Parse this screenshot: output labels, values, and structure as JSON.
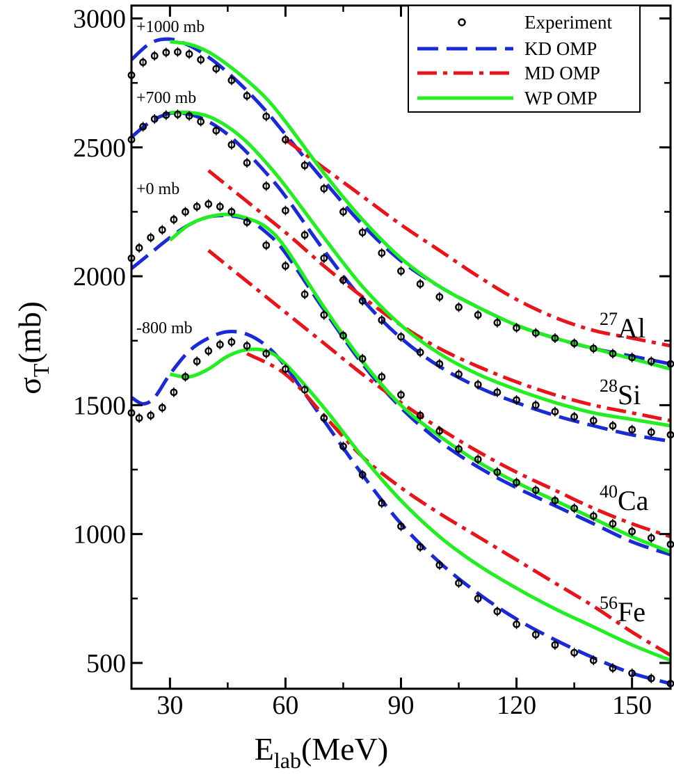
{
  "chart_data": {
    "type": "line",
    "xlabel": "E",
    "xlabel_sub": "lab",
    "xlabel_unit": "(MeV)",
    "ylabel": "σ",
    "ylabel_sub": "T",
    "ylabel_unit": "(mb)",
    "xlim": [
      20,
      160
    ],
    "ylim": [
      400,
      3050
    ],
    "x_ticks": [
      30,
      60,
      90,
      120,
      150
    ],
    "y_ticks": [
      500,
      1000,
      1500,
      2000,
      2500,
      3000
    ],
    "grid": false,
    "legend_position": "top-right",
    "legend": [
      {
        "label": "Experiment",
        "style": "markers",
        "color": "#000000"
      },
      {
        "label": "KD OMP",
        "style": "dashed",
        "color": "#1a2bd6"
      },
      {
        "label": "MD OMP",
        "style": "dash-dot",
        "color": "#e8141b"
      },
      {
        "label": "WP OMP",
        "style": "solid",
        "color": "#22ee22"
      }
    ],
    "offset_annotations": [
      "+1000 mb",
      "+700 mb",
      "+0 mb",
      "-800 mb"
    ],
    "nuclei": [
      {
        "mass": "27",
        "symbol": "Al"
      },
      {
        "mass": "28",
        "symbol": "Si"
      },
      {
        "mass": "40",
        "symbol": "Ca"
      },
      {
        "mass": "56",
        "symbol": "Fe"
      }
    ],
    "series": [
      {
        "name": "27Al (+1000 mb)",
        "experiment": {
          "x": [
            20,
            23,
            26,
            29,
            32,
            35,
            38,
            42,
            46,
            50,
            55,
            60,
            65,
            70,
            75,
            80,
            85,
            90,
            95,
            100,
            105,
            110,
            115,
            120,
            125,
            130,
            135,
            140,
            145,
            150,
            155,
            160
          ],
          "y": [
            2780,
            2830,
            2855,
            2868,
            2870,
            2862,
            2840,
            2805,
            2760,
            2700,
            2620,
            2530,
            2430,
            2340,
            2250,
            2170,
            2090,
            2020,
            1970,
            1920,
            1880,
            1850,
            1820,
            1800,
            1780,
            1760,
            1740,
            1720,
            1700,
            1685,
            1670,
            1660
          ]
        },
        "KD OMP": {
          "x": [
            20,
            25,
            30,
            35,
            40,
            45,
            50,
            55,
            60,
            70,
            80,
            90,
            100,
            110,
            120,
            130,
            140,
            150,
            160
          ],
          "y": [
            2840,
            2905,
            2920,
            2895,
            2850,
            2790,
            2720,
            2640,
            2550,
            2370,
            2200,
            2060,
            1960,
            1880,
            1810,
            1760,
            1720,
            1690,
            1660
          ]
        },
        "MD OMP": {
          "x": [
            60,
            70,
            80,
            90,
            100,
            110,
            120,
            130,
            140,
            150,
            160
          ],
          "y": [
            2530,
            2420,
            2310,
            2200,
            2100,
            2000,
            1910,
            1840,
            1790,
            1760,
            1730
          ]
        },
        "WP OMP": {
          "x": [
            30,
            35,
            40,
            45,
            50,
            55,
            60,
            70,
            80,
            90,
            100,
            110,
            120,
            130,
            140,
            150,
            160
          ],
          "y": [
            2910,
            2900,
            2870,
            2820,
            2760,
            2690,
            2600,
            2400,
            2220,
            2070,
            1960,
            1880,
            1810,
            1760,
            1720,
            1680,
            1640
          ]
        }
      },
      {
        "name": "28Si (+700 mb)",
        "experiment": {
          "x": [
            20,
            23,
            26,
            29,
            32,
            35,
            38,
            42,
            46,
            50,
            55,
            60,
            65,
            70,
            75,
            80,
            85,
            90,
            95,
            100,
            105,
            110,
            115,
            120,
            125,
            130,
            135,
            140,
            145,
            150,
            155,
            160
          ],
          "y": [
            2530,
            2580,
            2610,
            2625,
            2628,
            2622,
            2600,
            2565,
            2510,
            2440,
            2350,
            2255,
            2160,
            2070,
            1985,
            1905,
            1830,
            1765,
            1705,
            1660,
            1620,
            1580,
            1550,
            1520,
            1500,
            1475,
            1455,
            1440,
            1420,
            1405,
            1395,
            1385
          ]
        },
        "KD OMP": {
          "x": [
            20,
            25,
            30,
            35,
            40,
            45,
            50,
            55,
            60,
            70,
            80,
            90,
            100,
            110,
            120,
            130,
            140,
            150,
            160
          ],
          "y": [
            2540,
            2600,
            2632,
            2628,
            2600,
            2550,
            2480,
            2400,
            2310,
            2100,
            1910,
            1760,
            1650,
            1570,
            1510,
            1460,
            1420,
            1385,
            1360
          ]
        },
        "MD OMP": {
          "x": [
            40,
            50,
            60,
            70,
            80,
            90,
            100,
            110,
            120,
            130,
            140,
            150,
            160
          ],
          "y": [
            2410,
            2290,
            2170,
            2040,
            1920,
            1810,
            1720,
            1650,
            1590,
            1540,
            1500,
            1470,
            1440
          ]
        },
        "WP OMP": {
          "x": [
            30,
            35,
            40,
            45,
            50,
            55,
            60,
            70,
            80,
            90,
            100,
            110,
            120,
            130,
            140,
            150,
            160
          ],
          "y": [
            2635,
            2635,
            2620,
            2580,
            2520,
            2440,
            2350,
            2150,
            1960,
            1810,
            1700,
            1620,
            1560,
            1510,
            1470,
            1445,
            1420
          ]
        }
      },
      {
        "name": "40Ca (+0 mb)",
        "experiment": {
          "x": [
            20,
            22,
            25,
            28,
            31,
            34,
            37,
            40,
            43,
            46,
            50,
            55,
            60,
            65,
            70,
            75,
            80,
            85,
            90,
            95,
            100,
            105,
            110,
            115,
            120,
            125,
            130,
            135,
            140,
            145,
            150,
            155,
            160
          ],
          "y": [
            2070,
            2110,
            2150,
            2180,
            2220,
            2250,
            2270,
            2280,
            2270,
            2250,
            2210,
            2120,
            2040,
            1930,
            1850,
            1770,
            1680,
            1610,
            1540,
            1460,
            1400,
            1330,
            1290,
            1240,
            1200,
            1170,
            1130,
            1100,
            1070,
            1040,
            1010,
            985,
            960
          ]
        },
        "KD OMP": {
          "x": [
            20,
            25,
            30,
            35,
            40,
            45,
            50,
            55,
            60,
            70,
            80,
            90,
            100,
            110,
            120,
            130,
            140,
            150,
            160
          ],
          "y": [
            2030,
            2090,
            2150,
            2200,
            2230,
            2235,
            2220,
            2170,
            2090,
            1870,
            1660,
            1490,
            1360,
            1260,
            1180,
            1110,
            1040,
            970,
            920
          ]
        },
        "MD OMP": {
          "x": [
            40,
            50,
            60,
            70,
            80,
            90,
            100,
            110,
            120,
            130,
            140,
            150,
            160
          ],
          "y": [
            2100,
            1980,
            1860,
            1740,
            1620,
            1510,
            1410,
            1320,
            1240,
            1170,
            1100,
            1040,
            990
          ]
        },
        "WP OMP": {
          "x": [
            30,
            35,
            40,
            45,
            50,
            55,
            60,
            70,
            80,
            90,
            100,
            110,
            120,
            130,
            140,
            150,
            160
          ],
          "y": [
            2140,
            2200,
            2230,
            2240,
            2225,
            2190,
            2110,
            1880,
            1670,
            1500,
            1380,
            1280,
            1200,
            1130,
            1060,
            990,
            930
          ]
        }
      },
      {
        "name": "56Fe (-800 mb)",
        "experiment": {
          "x": [
            20,
            22,
            25,
            28,
            31,
            34,
            37,
            40,
            43,
            46,
            50,
            55,
            60,
            65,
            70,
            75,
            80,
            85,
            90,
            95,
            100,
            105,
            110,
            115,
            120,
            125,
            130,
            135,
            140,
            145,
            150,
            155,
            160
          ],
          "y": [
            1470,
            1450,
            1460,
            1490,
            1550,
            1610,
            1670,
            1710,
            1735,
            1745,
            1730,
            1700,
            1640,
            1560,
            1450,
            1340,
            1230,
            1120,
            1030,
            950,
            880,
            810,
            750,
            700,
            650,
            610,
            570,
            540,
            510,
            480,
            460,
            440,
            420
          ]
        },
        "KD OMP": {
          "x": [
            20,
            23,
            26,
            30,
            35,
            40,
            45,
            50,
            55,
            60,
            70,
            80,
            90,
            100,
            110,
            120,
            130,
            140,
            150,
            160
          ],
          "y": [
            1530,
            1505,
            1530,
            1620,
            1710,
            1760,
            1785,
            1775,
            1730,
            1650,
            1440,
            1230,
            1040,
            890,
            770,
            670,
            590,
            520,
            460,
            420
          ]
        },
        "MD OMP": {
          "x": [
            50,
            60,
            70,
            80,
            90,
            100,
            110,
            120,
            130,
            140,
            150,
            160
          ],
          "y": [
            1700,
            1620,
            1460,
            1300,
            1180,
            1080,
            990,
            900,
            810,
            720,
            620,
            530
          ]
        },
        "WP OMP": {
          "x": [
            30,
            35,
            40,
            45,
            50,
            55,
            60,
            70,
            80,
            90,
            100,
            110,
            120,
            130,
            140,
            150,
            160
          ],
          "y": [
            1620,
            1610,
            1640,
            1690,
            1715,
            1710,
            1660,
            1490,
            1300,
            1130,
            990,
            880,
            790,
            710,
            640,
            570,
            510
          ]
        }
      }
    ]
  }
}
